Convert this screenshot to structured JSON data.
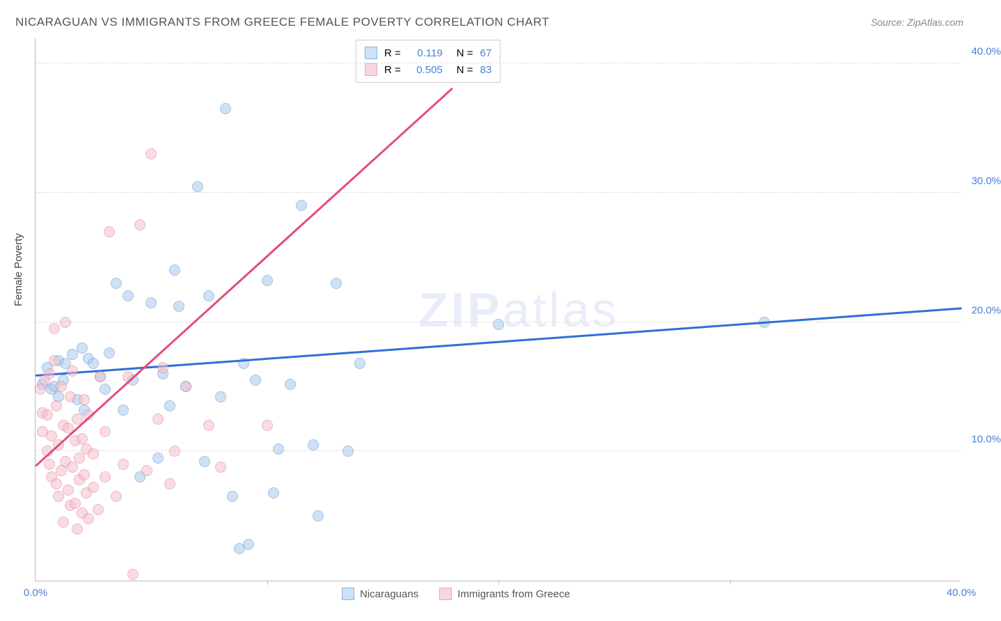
{
  "title": "NICARAGUAN VS IMMIGRANTS FROM GREECE FEMALE POVERTY CORRELATION CHART",
  "source_label": "Source: ZipAtlas.com",
  "y_axis_label": "Female Poverty",
  "watermark": {
    "bold": "ZIP",
    "light": "atlas"
  },
  "chart": {
    "type": "scatter",
    "xlim": [
      0,
      40
    ],
    "ylim": [
      0,
      42
    ],
    "x_ticks": [
      0,
      10,
      20,
      30,
      40
    ],
    "y_ticks": [
      10,
      20,
      30,
      40
    ],
    "x_tick_labels": {
      "0": "0.0%",
      "40": "40.0%"
    },
    "y_tick_labels": {
      "10": "10.0%",
      "20": "20.0%",
      "30": "30.0%",
      "40": "40.0%"
    },
    "tick_color": "#4a7fd8",
    "grid_color": "#dddddd",
    "background_color": "#ffffff",
    "marker_radius": 8,
    "marker_opacity": 0.55,
    "series": [
      {
        "name": "Nicaraguans",
        "color_fill": "#a8c9ee",
        "color_stroke": "#5a8fd0",
        "swatch_fill": "#cfe1f5",
        "swatch_stroke": "#87b5e4",
        "R": "0.119",
        "N": "67",
        "trend": {
          "x1": 0,
          "y1": 15.8,
          "x2": 40,
          "y2": 21.0,
          "color": "#2e6fd8",
          "width": 2.5
        },
        "points": [
          [
            0.3,
            15.2
          ],
          [
            0.5,
            16.5
          ],
          [
            0.7,
            14.8
          ],
          [
            0.8,
            15.0
          ],
          [
            1.0,
            17.0
          ],
          [
            1.0,
            14.2
          ],
          [
            1.2,
            15.5
          ],
          [
            1.3,
            16.8
          ],
          [
            1.6,
            17.5
          ],
          [
            1.8,
            14.0
          ],
          [
            2.0,
            18.0
          ],
          [
            2.1,
            13.2
          ],
          [
            2.3,
            17.2
          ],
          [
            2.5,
            16.8
          ],
          [
            2.8,
            15.8
          ],
          [
            3.0,
            14.8
          ],
          [
            3.2,
            17.6
          ],
          [
            3.5,
            23.0
          ],
          [
            3.8,
            13.2
          ],
          [
            4.0,
            22.0
          ],
          [
            4.2,
            15.5
          ],
          [
            4.5,
            8.0
          ],
          [
            5.0,
            21.5
          ],
          [
            5.3,
            9.5
          ],
          [
            5.5,
            16.0
          ],
          [
            5.8,
            13.5
          ],
          [
            6.0,
            24.0
          ],
          [
            6.2,
            21.2
          ],
          [
            6.5,
            15.0
          ],
          [
            7.0,
            30.5
          ],
          [
            7.3,
            9.2
          ],
          [
            7.5,
            22.0
          ],
          [
            8.0,
            14.2
          ],
          [
            8.2,
            36.5
          ],
          [
            8.5,
            6.5
          ],
          [
            8.8,
            2.5
          ],
          [
            9.0,
            16.8
          ],
          [
            9.2,
            2.8
          ],
          [
            9.5,
            15.5
          ],
          [
            10.0,
            23.2
          ],
          [
            10.3,
            6.8
          ],
          [
            10.5,
            10.2
          ],
          [
            11.0,
            15.2
          ],
          [
            11.5,
            29.0
          ],
          [
            12.0,
            10.5
          ],
          [
            12.2,
            5.0
          ],
          [
            13.0,
            23.0
          ],
          [
            13.5,
            10.0
          ],
          [
            14.0,
            16.8
          ],
          [
            20.0,
            19.8
          ],
          [
            31.5,
            20.0
          ]
        ]
      },
      {
        "name": "Immigrants from Greece",
        "color_fill": "#f4c0cc",
        "color_stroke": "#e07a95",
        "swatch_fill": "#f7d6de",
        "swatch_stroke": "#eda8ba",
        "R": "0.505",
        "N": "83",
        "trend": {
          "x1": 0,
          "y1": 8.8,
          "x2": 18,
          "y2": 38.0,
          "color": "#e54b7a",
          "width": 2.5
        },
        "points": [
          [
            0.2,
            14.8
          ],
          [
            0.3,
            13.0
          ],
          [
            0.3,
            11.5
          ],
          [
            0.4,
            15.5
          ],
          [
            0.5,
            10.0
          ],
          [
            0.5,
            12.8
          ],
          [
            0.6,
            9.0
          ],
          [
            0.6,
            16.0
          ],
          [
            0.7,
            11.2
          ],
          [
            0.7,
            8.0
          ],
          [
            0.8,
            17.0
          ],
          [
            0.8,
            19.5
          ],
          [
            0.9,
            7.5
          ],
          [
            0.9,
            13.5
          ],
          [
            1.0,
            10.5
          ],
          [
            1.0,
            6.5
          ],
          [
            1.1,
            15.0
          ],
          [
            1.1,
            8.5
          ],
          [
            1.2,
            12.0
          ],
          [
            1.2,
            4.5
          ],
          [
            1.3,
            20.0
          ],
          [
            1.3,
            9.2
          ],
          [
            1.4,
            11.8
          ],
          [
            1.4,
            7.0
          ],
          [
            1.5,
            14.2
          ],
          [
            1.5,
            5.8
          ],
          [
            1.6,
            16.2
          ],
          [
            1.6,
            8.8
          ],
          [
            1.7,
            10.8
          ],
          [
            1.7,
            6.0
          ],
          [
            1.8,
            12.5
          ],
          [
            1.8,
            4.0
          ],
          [
            1.9,
            9.5
          ],
          [
            1.9,
            7.8
          ],
          [
            2.0,
            11.0
          ],
          [
            2.0,
            5.2
          ],
          [
            2.1,
            8.2
          ],
          [
            2.1,
            14.0
          ],
          [
            2.2,
            6.8
          ],
          [
            2.2,
            10.2
          ],
          [
            2.3,
            4.8
          ],
          [
            2.3,
            12.8
          ],
          [
            2.5,
            7.2
          ],
          [
            2.5,
            9.8
          ],
          [
            2.7,
            5.5
          ],
          [
            2.8,
            15.8
          ],
          [
            3.0,
            8.0
          ],
          [
            3.0,
            11.5
          ],
          [
            3.2,
            27.0
          ],
          [
            3.5,
            6.5
          ],
          [
            3.8,
            9.0
          ],
          [
            4.0,
            15.8
          ],
          [
            4.2,
            0.5
          ],
          [
            4.5,
            27.5
          ],
          [
            4.8,
            8.5
          ],
          [
            5.0,
            33.0
          ],
          [
            5.3,
            12.5
          ],
          [
            5.5,
            16.5
          ],
          [
            5.8,
            7.5
          ],
          [
            6.0,
            10.0
          ],
          [
            6.5,
            15.0
          ],
          [
            7.5,
            12.0
          ],
          [
            8.0,
            8.8
          ],
          [
            10.0,
            12.0
          ]
        ]
      }
    ]
  },
  "stats_labels": {
    "R": "R =",
    "N": "N ="
  }
}
